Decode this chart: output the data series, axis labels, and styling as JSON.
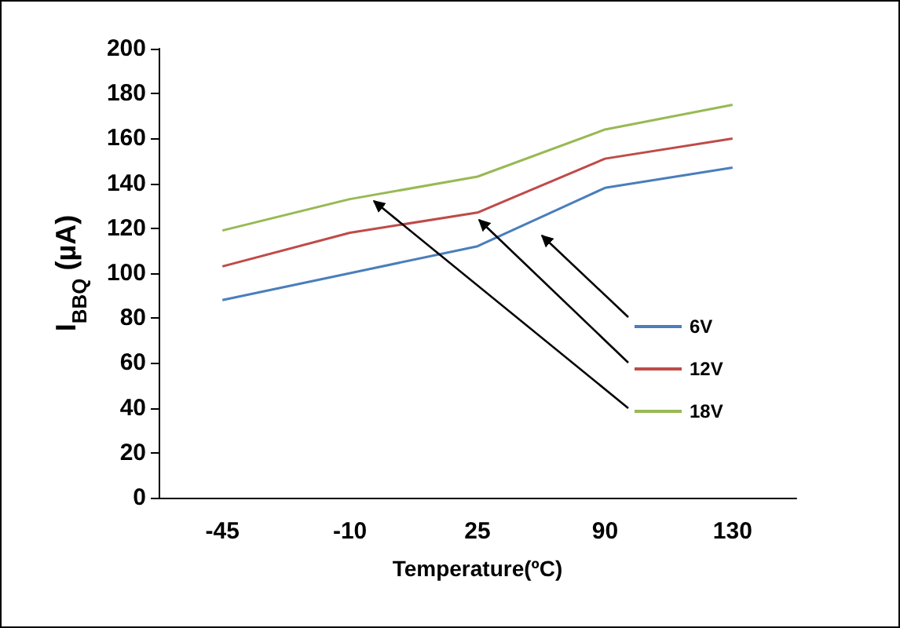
{
  "chart_data": {
    "type": "line",
    "xlabel": "Temperature(ºC)",
    "ylabel": "I$_{BBQ}$ (µA)",
    "categories": [
      "-45",
      "-10",
      "25",
      "90",
      "130"
    ],
    "series": [
      {
        "name": "6V",
        "color": "#4a7ebb",
        "values": [
          88,
          100,
          112,
          138,
          147
        ]
      },
      {
        "name": "12V",
        "color": "#be4b48",
        "values": [
          103,
          118,
          127,
          151,
          160
        ]
      },
      {
        "name": "18V",
        "color": "#98b954",
        "values": [
          119,
          133,
          143,
          164,
          175
        ]
      }
    ],
    "ylim": [
      0,
      200
    ],
    "yticks": [
      0,
      20,
      40,
      60,
      80,
      100,
      120,
      140,
      160,
      180,
      200
    ],
    "grid": false,
    "legend": "right",
    "marker": "none",
    "line_style": "solid"
  }
}
